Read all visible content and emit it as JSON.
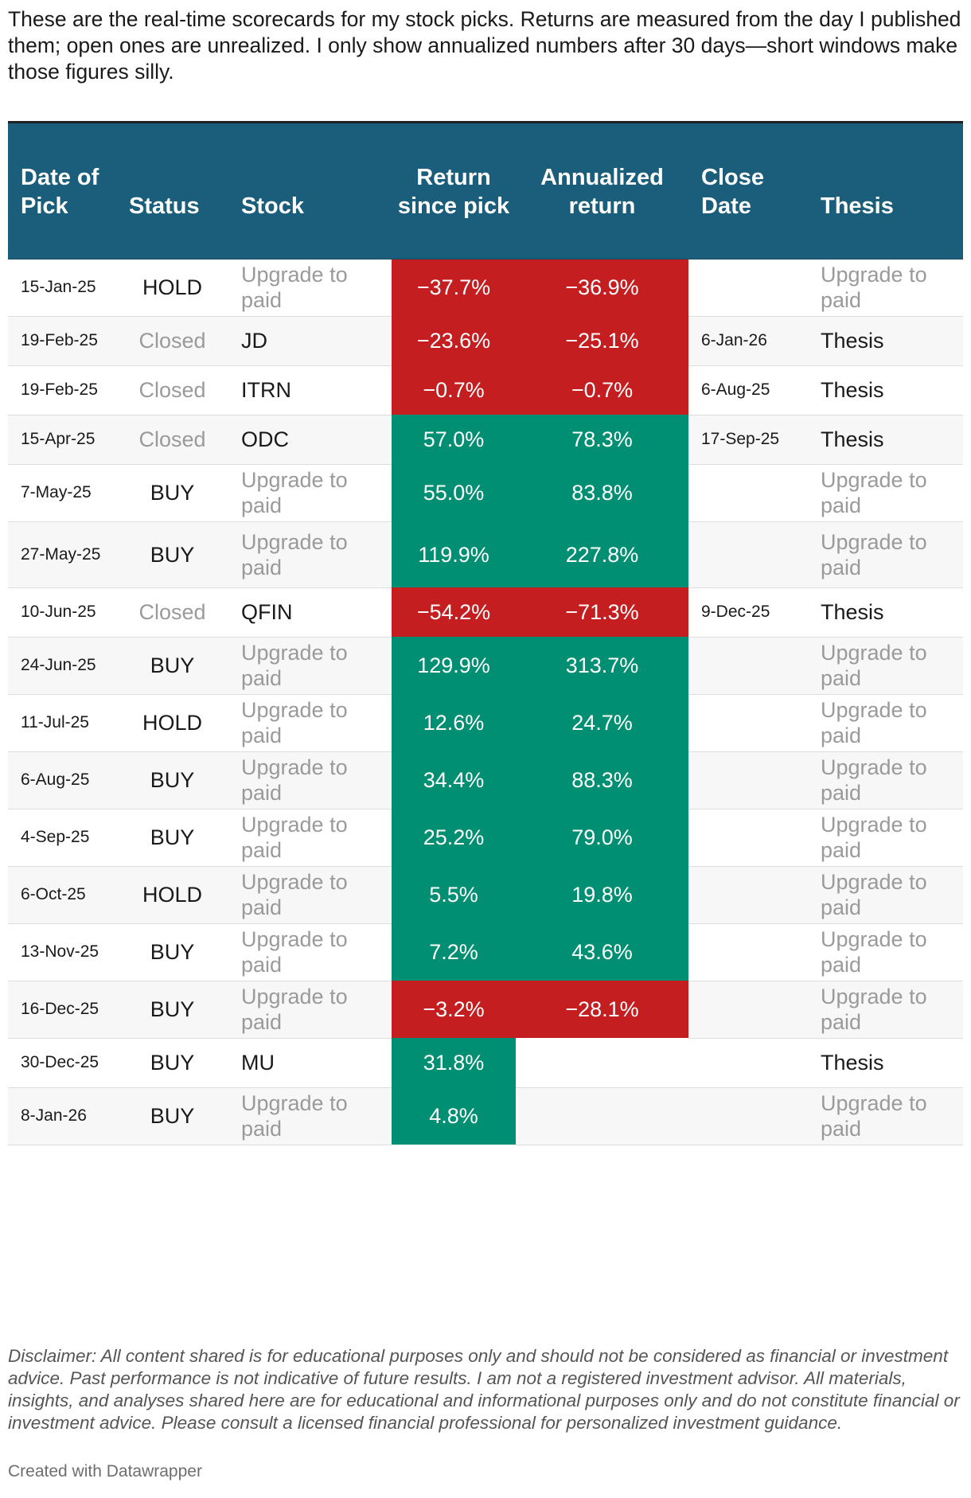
{
  "intro": "These are the real-time scorecards for my stock picks. Returns are measured from the day I published them; open ones are unrealized. I only show annualized numbers after 30 days—short windows make those figures silly.",
  "headers": {
    "date": "Date of Pick",
    "status": "Status",
    "stock": "Stock",
    "return": "Return since pick",
    "annualized": "Annualized return",
    "close": "Close Date",
    "thesis": "Thesis"
  },
  "colors": {
    "header_bg": "#1b5e7b",
    "negative": "#c41e20",
    "positive": "#008f72",
    "muted_text": "#9a9a9a"
  },
  "rows": [
    {
      "date": "15-Jan-25",
      "status": "HOLD",
      "stock": "Upgrade to paid",
      "ret": "−37.7%",
      "ret_sign": "neg",
      "ann": "−36.9%",
      "ann_sign": "neg",
      "close": "",
      "thesis": "Upgrade to paid"
    },
    {
      "date": "19-Feb-25",
      "status": "Closed",
      "stock": "JD",
      "ret": "−23.6%",
      "ret_sign": "neg",
      "ann": "−25.1%",
      "ann_sign": "neg",
      "close": "6-Jan-26",
      "thesis": "Thesis"
    },
    {
      "date": "19-Feb-25",
      "status": "Closed",
      "stock": "ITRN",
      "ret": "−0.7%",
      "ret_sign": "neg",
      "ann": "−0.7%",
      "ann_sign": "neg",
      "close": "6-Aug-25",
      "thesis": "Thesis"
    },
    {
      "date": "15-Apr-25",
      "status": "Closed",
      "stock": "ODC",
      "ret": "57.0%",
      "ret_sign": "pos",
      "ann": "78.3%",
      "ann_sign": "pos",
      "close": "17-Sep-25",
      "thesis": "Thesis"
    },
    {
      "date": "7-May-25",
      "status": "BUY",
      "stock": "Upgrade to paid",
      "ret": "55.0%",
      "ret_sign": "pos",
      "ann": "83.8%",
      "ann_sign": "pos",
      "close": "",
      "thesis": "Upgrade to paid"
    },
    {
      "date": "27-May-25",
      "status": "BUY",
      "stock": "Upgrade to paid",
      "ret": "119.9%",
      "ret_sign": "pos",
      "ann": "227.8%",
      "ann_sign": "pos",
      "close": "",
      "thesis": "Upgrade to paid"
    },
    {
      "date": "10-Jun-25",
      "status": "Closed",
      "stock": "QFIN",
      "ret": "−54.2%",
      "ret_sign": "neg",
      "ann": "−71.3%",
      "ann_sign": "neg",
      "close": "9-Dec-25",
      "thesis": "Thesis"
    },
    {
      "date": "24-Jun-25",
      "status": "BUY",
      "stock": "Upgrade to paid",
      "ret": "129.9%",
      "ret_sign": "pos",
      "ann": "313.7%",
      "ann_sign": "pos",
      "close": "",
      "thesis": "Upgrade to paid"
    },
    {
      "date": "11-Jul-25",
      "status": "HOLD",
      "stock": "Upgrade to paid",
      "ret": "12.6%",
      "ret_sign": "pos",
      "ann": "24.7%",
      "ann_sign": "pos",
      "close": "",
      "thesis": "Upgrade to paid"
    },
    {
      "date": "6-Aug-25",
      "status": "BUY",
      "stock": "Upgrade to paid",
      "ret": "34.4%",
      "ret_sign": "pos",
      "ann": "88.3%",
      "ann_sign": "pos",
      "close": "",
      "thesis": "Upgrade to paid"
    },
    {
      "date": "4-Sep-25",
      "status": "BUY",
      "stock": "Upgrade to paid",
      "ret": "25.2%",
      "ret_sign": "pos",
      "ann": "79.0%",
      "ann_sign": "pos",
      "close": "",
      "thesis": "Upgrade to paid"
    },
    {
      "date": "6-Oct-25",
      "status": "HOLD",
      "stock": "Upgrade to paid",
      "ret": "5.5%",
      "ret_sign": "pos",
      "ann": "19.8%",
      "ann_sign": "pos",
      "close": "",
      "thesis": "Upgrade to paid"
    },
    {
      "date": "13-Nov-25",
      "status": "BUY",
      "stock": "Upgrade to paid",
      "ret": "7.2%",
      "ret_sign": "pos",
      "ann": "43.6%",
      "ann_sign": "pos",
      "close": "",
      "thesis": "Upgrade to paid"
    },
    {
      "date": "16-Dec-25",
      "status": "BUY",
      "stock": "Upgrade to paid",
      "ret": "−3.2%",
      "ret_sign": "neg",
      "ann": "−28.1%",
      "ann_sign": "neg",
      "close": "",
      "thesis": "Upgrade to paid"
    },
    {
      "date": "30-Dec-25",
      "status": "BUY",
      "stock": "MU",
      "ret": "31.8%",
      "ret_sign": "pos",
      "ann": "",
      "ann_sign": "blank",
      "close": "",
      "thesis": "Thesis"
    },
    {
      "date": "8-Jan-26",
      "status": "BUY",
      "stock": "Upgrade to paid",
      "ret": "4.8%",
      "ret_sign": "pos",
      "ann": "",
      "ann_sign": "blank",
      "close": "",
      "thesis": "Upgrade to paid"
    }
  ],
  "disclaimer": "Disclaimer: All content shared is for educational purposes only and should not be considered as financial or investment advice. Past performance is not indicative of future results. I am not a registered investment advisor. All materials, insights, and analyses shared here are for educational and informational purposes only and do not constitute financial or investment advice. Please consult a licensed financial professional for personalized investment guidance.",
  "credit": "Created with Datawrapper"
}
